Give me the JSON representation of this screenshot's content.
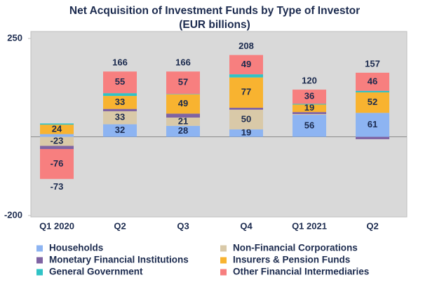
{
  "chart_data": {
    "type": "stacked_bar",
    "title": "Net Acquisition of Investment Funds by Type of Investor",
    "subtitle": "(EUR billions)",
    "categories": [
      "Q1 2020",
      "Q2",
      "Q3",
      "Q4",
      "Q1 2021",
      "Q2"
    ],
    "series": [
      {
        "name": "Households",
        "color": "#8db4f2",
        "values": [
          7,
          32,
          28,
          19,
          56,
          61
        ]
      },
      {
        "name": "Non-Financial Corporations",
        "color": "#d9c9a8",
        "values": [
          -23,
          33,
          21,
          50,
          2,
          0
        ]
      },
      {
        "name": "Monetary Financial Institutions",
        "color": "#7f63a3",
        "values": [
          -8,
          6,
          10,
          5,
          5,
          -6
        ]
      },
      {
        "name": "Insurers & Pension Funds",
        "color": "#f8b330",
        "values": [
          24,
          33,
          49,
          77,
          19,
          52
        ]
      },
      {
        "name": "General Government",
        "color": "#2fc3c6",
        "values": [
          3,
          7,
          1,
          8,
          2,
          4
        ]
      },
      {
        "name": "Other Financial Intermediaries",
        "color": "#f77f7f",
        "values": [
          -76,
          55,
          57,
          49,
          36,
          46
        ]
      }
    ],
    "totals": [
      -73,
      166,
      166,
      208,
      120,
      157
    ],
    "ylim": [
      -200,
      250
    ],
    "yticks": [
      -200,
      250
    ]
  }
}
